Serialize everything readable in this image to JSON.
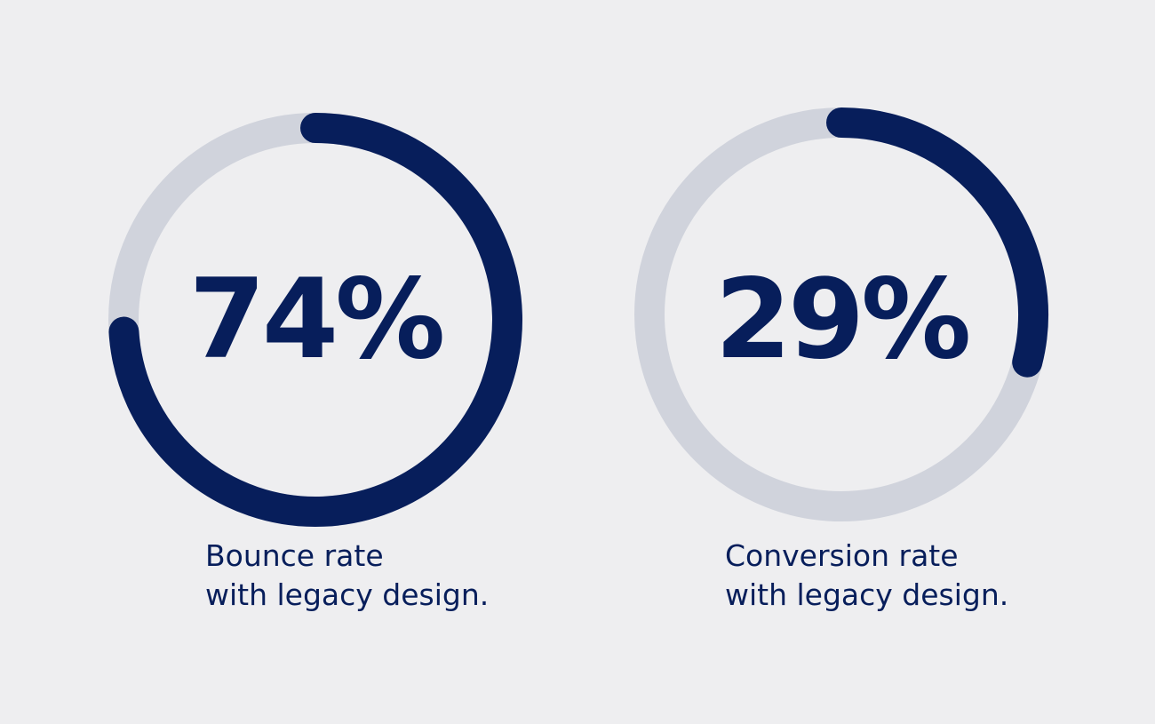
{
  "colors": {
    "background": "#eeeef0",
    "track": "#d0d3dc",
    "accent": "#071e5b"
  },
  "chart_data": [
    {
      "type": "donut-progress",
      "value": 74,
      "max": 100,
      "value_label": "74%",
      "caption_line1": "Bounce rate",
      "caption_line2": "with legacy design."
    },
    {
      "type": "donut-progress",
      "value": 29,
      "max": 100,
      "value_label": "29%",
      "caption_line1": "Conversion rate",
      "caption_line2": "with legacy design."
    }
  ]
}
